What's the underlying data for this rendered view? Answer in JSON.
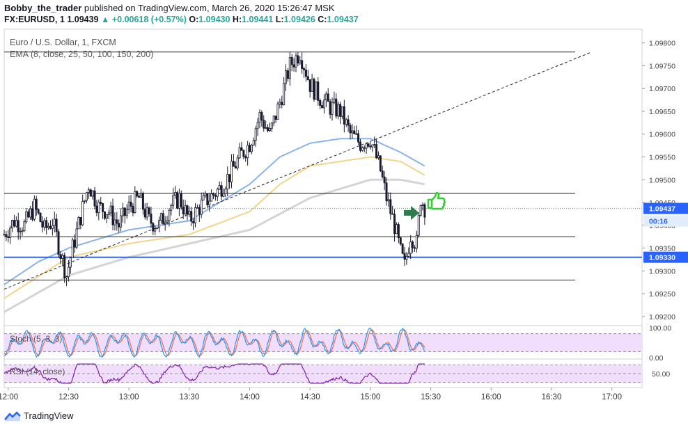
{
  "header": {
    "publisher": "Bobby_the_trader",
    "published_text": "published on TradingView.com, March 26, 2020 15:26:47 MSK",
    "symbol": "FX:EURUSD, 1",
    "last": "1.09439",
    "change": "+0.00618 (+0.57%)",
    "o_label": "O:",
    "o": "1.09430",
    "h_label": "H:",
    "h": "1.09441",
    "l_label": "L:",
    "l": "1.09426",
    "c_label": "C:",
    "c": "1.09437"
  },
  "legend": {
    "instrument": "Euro / U.S. Dollar, 1, FXCM",
    "ema": "EMA (8, close, 25, 50, 100, 150, 200)",
    "stoch": "Stoch (5, 3, 3)",
    "rsi": "RSI (14, close)"
  },
  "footer": {
    "brand": "TradingView"
  },
  "colors": {
    "up": "#26a69a",
    "candle": "#1a1a2e",
    "ema_blue": "#8ab4e8",
    "ema_yellow": "#f2d48a",
    "ema_gray": "#d4d4d4",
    "support": "#2962ff",
    "stoch_k": "#2196f3",
    "stoch_d": "#ef6c4f",
    "rsi": "#7b1fa2",
    "band": "#f1defc",
    "arrow": "#2e7d4f",
    "thumb": "#33cc33"
  },
  "chart_data": [
    {
      "type": "candlestick",
      "x_ticks": [
        "12:00",
        "12:30",
        "13:00",
        "13:30",
        "14:00",
        "14:30",
        "15:00",
        "15:30",
        "16:00",
        "16:30",
        "17:00"
      ],
      "y_ticks": [
        "1.09800",
        "1.09750",
        "1.09700",
        "1.09650",
        "1.09600",
        "1.09550",
        "1.09500",
        "1.09450",
        "1.09400",
        "1.09350",
        "1.09300",
        "1.09250",
        "1.09200"
      ],
      "ylim": [
        1.0918,
        1.0983
      ],
      "xlim": [
        "11:58",
        "17:15"
      ],
      "price_labels": {
        "current": "1.09437",
        "countdown": "00:16",
        "support": "1.09330"
      },
      "horizontal_levels": [
        1.0978,
        1.0947,
        1.09375,
        1.0933,
        1.0928
      ],
      "trendline": {
        "from": [
          "11:58",
          1.0926
        ],
        "to": [
          "16:50",
          1.0978
        ]
      },
      "price_path": [
        [
          "11:58",
          1.0938
        ],
        [
          "12:03",
          1.0941
        ],
        [
          "12:08",
          1.094
        ],
        [
          "12:13",
          1.0944
        ],
        [
          "12:18",
          1.0939
        ],
        [
          "12:22",
          1.0941
        ],
        [
          "12:26",
          1.0934
        ],
        [
          "12:29",
          1.0929
        ],
        [
          "12:32",
          1.0935
        ],
        [
          "12:36",
          1.0942
        ],
        [
          "12:40",
          1.0949
        ],
        [
          "12:45",
          1.0944
        ],
        [
          "12:50",
          1.0943
        ],
        [
          "12:55",
          1.094
        ],
        [
          "13:00",
          1.0944
        ],
        [
          "13:05",
          1.0946
        ],
        [
          "13:10",
          1.0941
        ],
        [
          "13:15",
          1.094
        ],
        [
          "13:20",
          1.0944
        ],
        [
          "13:25",
          1.0946
        ],
        [
          "13:30",
          1.0941
        ],
        [
          "13:35",
          1.0944
        ],
        [
          "13:40",
          1.0946
        ],
        [
          "13:45",
          1.0948
        ],
        [
          "13:50",
          1.0951
        ],
        [
          "13:55",
          1.0955
        ],
        [
          "14:00",
          1.0958
        ],
        [
          "14:05",
          1.0964
        ],
        [
          "14:10",
          1.096
        ],
        [
          "14:15",
          1.0967
        ],
        [
          "14:20",
          1.0975
        ],
        [
          "14:25",
          1.0978
        ],
        [
          "14:30",
          1.0971
        ],
        [
          "14:35",
          1.0968
        ],
        [
          "14:40",
          1.0966
        ],
        [
          "14:45",
          1.0965
        ],
        [
          "14:50",
          1.096
        ],
        [
          "14:55",
          1.0958
        ],
        [
          "15:00",
          1.0959
        ],
        [
          "15:05",
          1.0952
        ],
        [
          "15:08",
          1.0946
        ],
        [
          "15:12",
          1.094
        ],
        [
          "15:15",
          1.0934
        ],
        [
          "15:17",
          1.0931
        ],
        [
          "15:20",
          1.0938
        ],
        [
          "15:23",
          1.0936
        ],
        [
          "15:25",
          1.0946
        ],
        [
          "15:27",
          1.0944
        ]
      ],
      "ema_fast": [
        [
          "11:58",
          1.0927
        ],
        [
          "12:15",
          1.0932
        ],
        [
          "12:30",
          1.0935
        ],
        [
          "13:00",
          1.0939
        ],
        [
          "13:30",
          1.0941
        ],
        [
          "14:00",
          1.0949
        ],
        [
          "14:15",
          1.0955
        ],
        [
          "14:30",
          1.0958
        ],
        [
          "14:45",
          1.0959
        ],
        [
          "15:00",
          1.0959
        ],
        [
          "15:15",
          1.0956
        ],
        [
          "15:27",
          1.0953
        ]
      ],
      "ema_mid": [
        [
          "11:58",
          1.0924
        ],
        [
          "12:30",
          1.0933
        ],
        [
          "13:00",
          1.0936
        ],
        [
          "13:30",
          1.0938
        ],
        [
          "14:00",
          1.0943
        ],
        [
          "14:15",
          1.0949
        ],
        [
          "14:30",
          1.0953
        ],
        [
          "15:00",
          1.0955
        ],
        [
          "15:15",
          1.0954
        ],
        [
          "15:27",
          1.0951
        ]
      ],
      "ema_slow": [
        [
          "11:58",
          1.0921
        ],
        [
          "12:30",
          1.0929
        ],
        [
          "13:00",
          1.0933
        ],
        [
          "13:30",
          1.0936
        ],
        [
          "14:00",
          1.0939
        ],
        [
          "14:30",
          1.0946
        ],
        [
          "15:00",
          1.095
        ],
        [
          "15:15",
          1.095
        ],
        [
          "15:27",
          1.0949
        ]
      ]
    },
    {
      "type": "line",
      "name": "Stoch (5, 3, 3)",
      "y_ticks": [
        "100.00",
        "0.00"
      ],
      "ylim": [
        0,
        100
      ],
      "band": [
        20,
        80
      ]
    },
    {
      "type": "line",
      "name": "RSI (14, close)",
      "y_ticks": [
        "50.00"
      ],
      "ylim": [
        20,
        80
      ],
      "band": [
        30,
        70
      ]
    }
  ]
}
